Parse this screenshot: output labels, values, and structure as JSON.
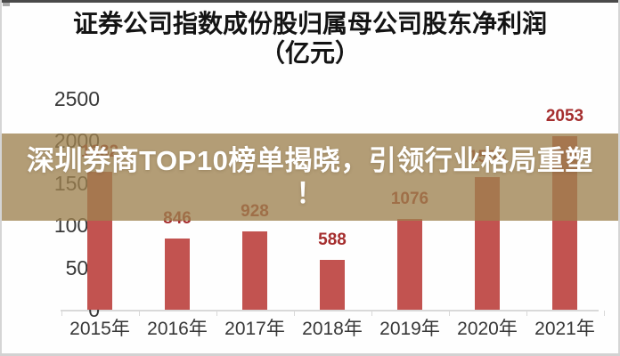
{
  "title": {
    "line1": "证券公司指数成份股归属母公司股东净利润",
    "line2": "（亿元）"
  },
  "headline": {
    "full": "深圳券商TOP10榜单揭晓，引领行业格局重塑！",
    "line1": "深圳券商TOP10榜单揭晓，引领行业格局重塑",
    "line2": "！"
  },
  "chart_data": {
    "type": "bar",
    "title": "证券公司指数成份股归属母公司股东净利润（亿元）",
    "categories": [
      "2015年",
      "2016年",
      "2017年",
      "2018年",
      "2019年",
      "2020年",
      "2021年"
    ],
    "values": [
      1632,
      846,
      928,
      588,
      1076,
      1564,
      2053
    ],
    "xlabel": "",
    "ylabel": "",
    "ylim": [
      0,
      2500
    ],
    "yticks": [
      0,
      500,
      1000,
      1500,
      2000,
      2500
    ],
    "grid": false,
    "legend": false,
    "bar_color": "#c25350",
    "data_label_color": "#a52e2e"
  },
  "colors": {
    "bar": "#c25350",
    "data_label": "#a52e2e",
    "axis": "#d9d9d9",
    "headline_band": "rgba(158,130,80,0.78)",
    "headline_text": "#ffffff",
    "title_text": "#141414",
    "tick_text": "#383838",
    "top_border": "#4a4a4a"
  }
}
